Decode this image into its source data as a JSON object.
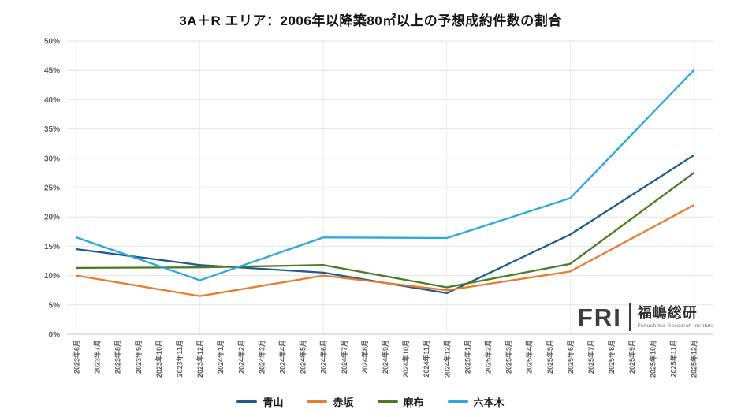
{
  "chart_data": {
    "type": "line",
    "title": "3A＋R エリア：2006年以降築80㎡以上の予想成約件数の割合",
    "xlabel": "",
    "ylabel": "",
    "ylim": [
      0,
      50
    ],
    "ytick_step": 5,
    "ytick_suffix": "%",
    "grid": "horizontal every 5%, faint vertical every 6 months",
    "legend_position": "bottom",
    "categories": [
      "2023年6月",
      "2023年7月",
      "2023年8月",
      "2023年9月",
      "2023年10月",
      "2023年11月",
      "2023年12月",
      "2024年1月",
      "2024年2月",
      "2024年3月",
      "2024年4月",
      "2024年5月",
      "2024年6月",
      "2024年7月",
      "2024年8月",
      "2024年9月",
      "2024年10月",
      "2024年11月",
      "2024年12月",
      "2025年1月",
      "2025年2月",
      "2025年3月",
      "2025年4月",
      "2025年5月",
      "2025年6月",
      "2025年7月",
      "2025年8月",
      "2025年9月",
      "2025年10月",
      "2025年11月",
      "2025年12月"
    ],
    "series": [
      {
        "name": "青山",
        "key": "aoyama",
        "color": "#1f5c8b",
        "values": [
          14.5,
          null,
          null,
          null,
          null,
          null,
          11.8,
          null,
          null,
          null,
          null,
          null,
          10.5,
          null,
          null,
          null,
          null,
          null,
          7.0,
          null,
          null,
          null,
          null,
          null,
          17.0,
          null,
          null,
          null,
          null,
          null,
          30.5
        ]
      },
      {
        "name": "赤坂",
        "key": "akasaka",
        "color": "#e87d2f",
        "values": [
          10.0,
          null,
          null,
          null,
          null,
          null,
          6.5,
          null,
          null,
          null,
          null,
          null,
          10.0,
          null,
          null,
          null,
          null,
          null,
          7.5,
          null,
          null,
          null,
          null,
          null,
          10.7,
          null,
          null,
          null,
          null,
          null,
          22.0
        ]
      },
      {
        "name": "麻布",
        "key": "azabu",
        "color": "#4a7c23",
        "values": [
          11.3,
          null,
          null,
          null,
          null,
          null,
          11.4,
          null,
          null,
          null,
          null,
          null,
          11.8,
          null,
          null,
          null,
          null,
          null,
          8.0,
          null,
          null,
          null,
          null,
          null,
          12.0,
          null,
          null,
          null,
          null,
          null,
          27.5
        ]
      },
      {
        "name": "六本木",
        "key": "roppongi",
        "color": "#29a9dd",
        "values": [
          16.5,
          null,
          null,
          null,
          null,
          null,
          9.2,
          null,
          null,
          null,
          null,
          null,
          16.5,
          null,
          null,
          null,
          null,
          null,
          16.4,
          null,
          null,
          null,
          null,
          null,
          23.2,
          null,
          null,
          null,
          null,
          null,
          45.0
        ]
      }
    ]
  },
  "logo": {
    "monogram": "FRI",
    "name_jp": "福嶋総研",
    "name_en": "Fukushima Research Institute"
  }
}
